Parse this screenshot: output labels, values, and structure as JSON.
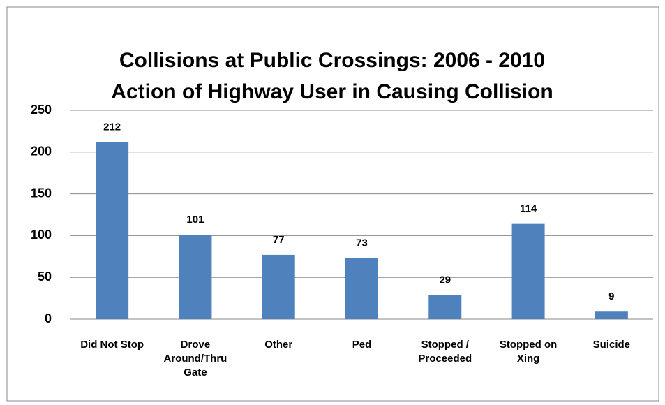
{
  "chart_data": {
    "type": "bar",
    "title": "Collisions at Public Crossings:  2006 - 2010",
    "subtitle": "Action of Highway User in Causing Collision",
    "categories": [
      "Did Not Stop",
      "Drove Around/Thru Gate",
      "Other",
      "Ped",
      "Stopped / Proceeded",
      "Stopped on Xing",
      "Suicide"
    ],
    "values": [
      212,
      101,
      77,
      73,
      29,
      114,
      9
    ],
    "color": "#4f81bd",
    "ylim": [
      0,
      250
    ],
    "yticks": [
      0,
      50,
      100,
      150,
      200,
      250
    ],
    "grid": true,
    "data_labels": true
  }
}
